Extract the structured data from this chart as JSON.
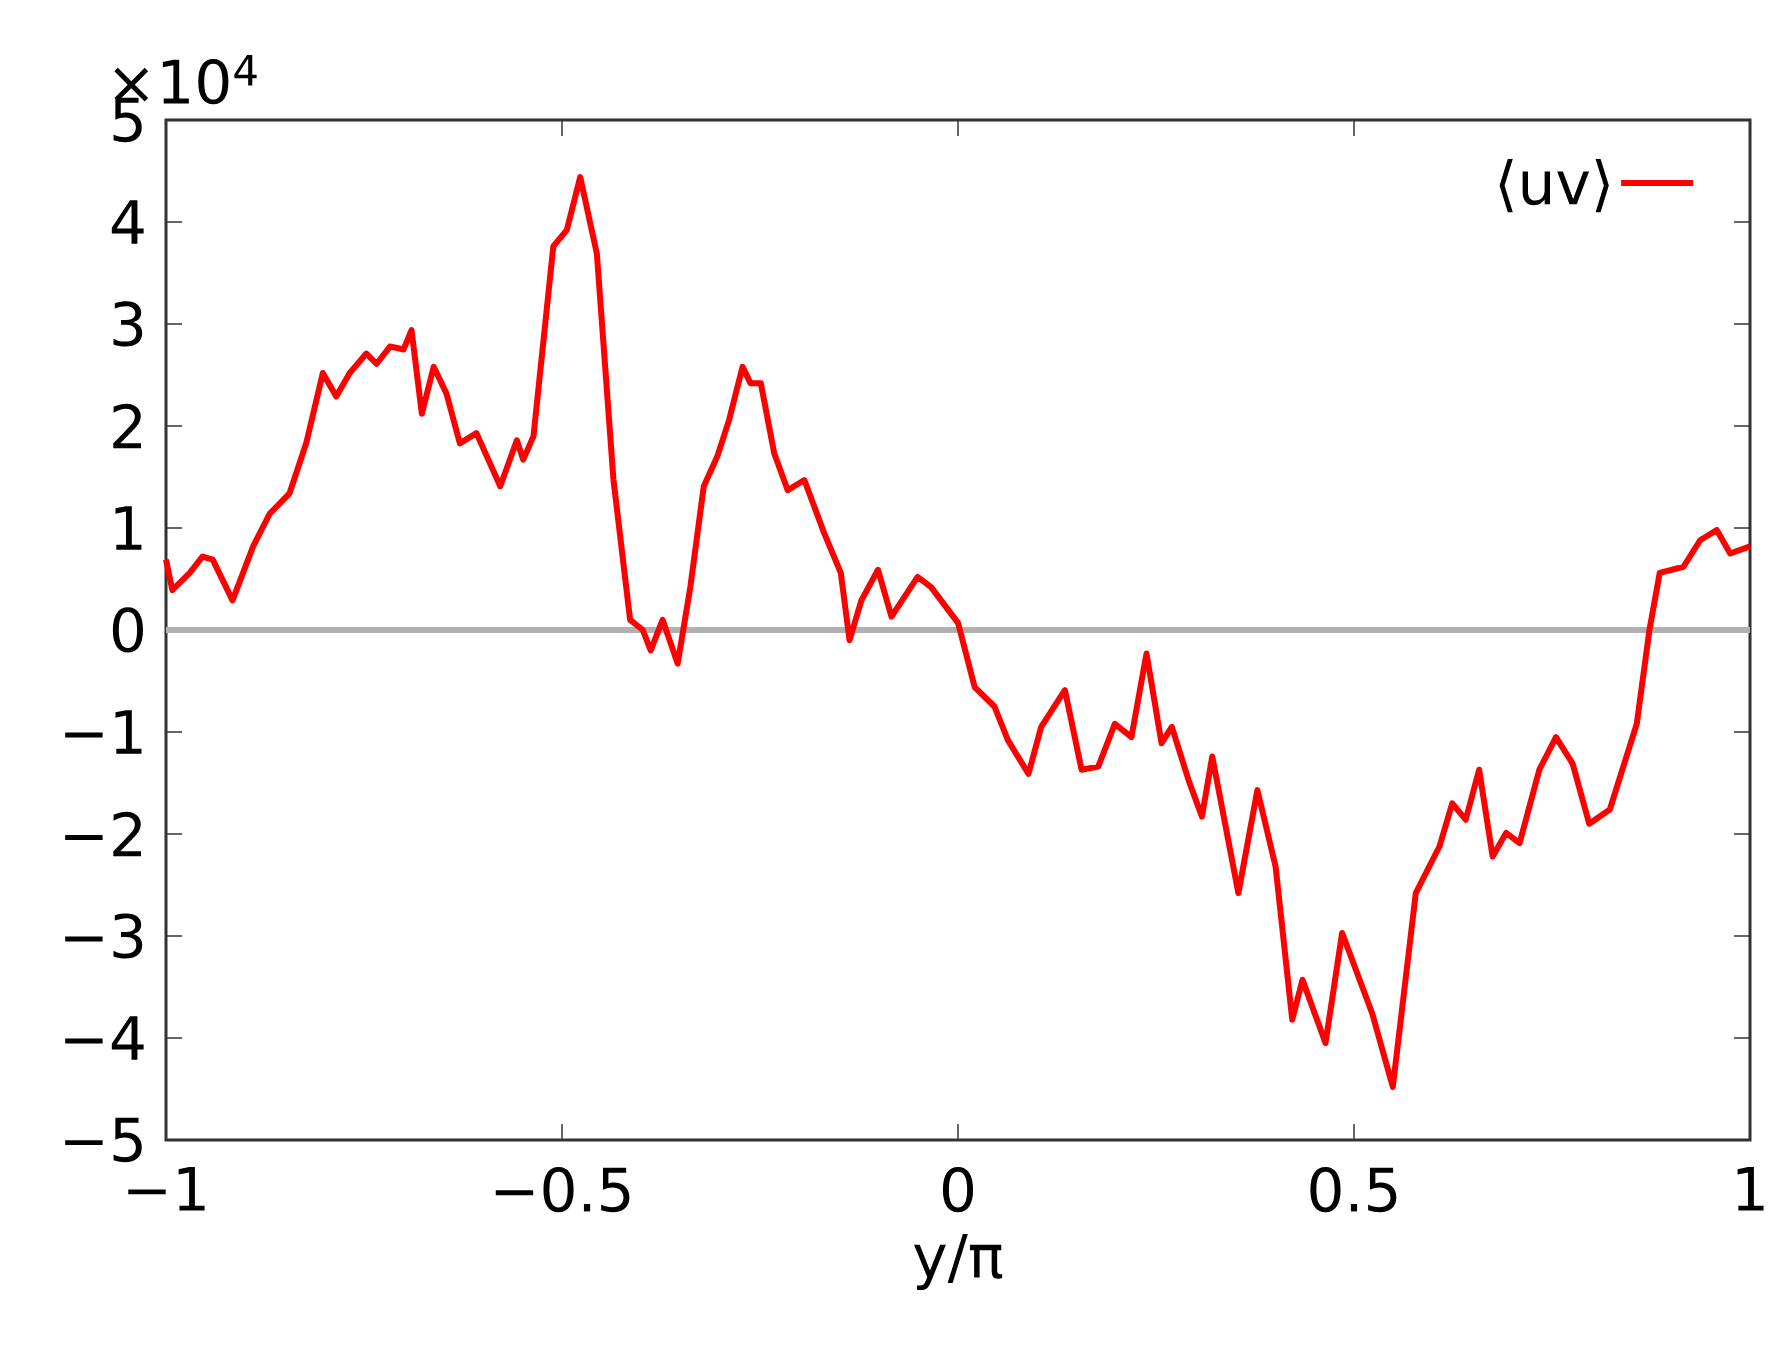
{
  "chart_data": {
    "type": "line",
    "xlabel": "y/π",
    "annotations": [
      "×10$^{4}$"
    ],
    "xlim": [
      -1,
      1
    ],
    "ylim": [
      -5,
      5
    ],
    "xticks": [
      {
        "value": -1,
        "label": "−1"
      },
      {
        "value": -0.5,
        "label": "−0.5"
      },
      0,
      0.5,
      1
    ],
    "yticks": [
      {
        "value": -5,
        "label": "−5"
      },
      {
        "value": -4,
        "label": "−4"
      },
      {
        "value": -3,
        "label": "−3"
      },
      {
        "value": -2,
        "label": "−2"
      },
      {
        "value": -1,
        "label": "−1"
      },
      0,
      1,
      2,
      3,
      4,
      5
    ],
    "grid": false,
    "legend": "top right",
    "marker": "none",
    "line_style": "solid",
    "ref_lines": [
      {
        "axis": "y",
        "value": 0,
        "color": "#b0b0b0"
      }
    ],
    "series": [
      {
        "name": "⟨uv⟩",
        "color": "#ff0000",
        "x": [
          -1.0,
          -0.992,
          -0.97,
          -0.954,
          -0.941,
          -0.916,
          -0.89,
          -0.869,
          -0.844,
          -0.823,
          -0.802,
          -0.785,
          -0.768,
          -0.747,
          -0.734,
          -0.717,
          -0.7,
          -0.69,
          -0.677,
          -0.662,
          -0.646,
          -0.629,
          -0.608,
          -0.578,
          -0.557,
          -0.549,
          -0.536,
          -0.511,
          -0.494,
          -0.477,
          -0.456,
          -0.435,
          -0.414,
          -0.398,
          -0.388,
          -0.373,
          -0.354,
          -0.338,
          -0.321,
          -0.304,
          -0.289,
          -0.272,
          -0.262,
          -0.249,
          -0.232,
          -0.215,
          -0.194,
          -0.169,
          -0.148,
          -0.137,
          -0.122,
          -0.101,
          -0.084,
          -0.051,
          -0.034,
          0.0,
          0.021,
          0.046,
          0.063,
          0.089,
          0.105,
          0.135,
          0.156,
          0.177,
          0.198,
          0.219,
          0.238,
          0.257,
          0.27,
          0.291,
          0.308,
          0.321,
          0.354,
          0.378,
          0.401,
          0.422,
          0.435,
          0.464,
          0.485,
          0.523,
          0.549,
          0.578,
          0.608,
          0.624,
          0.641,
          0.658,
          0.675,
          0.692,
          0.709,
          0.734,
          0.755,
          0.776,
          0.797,
          0.823,
          0.857,
          0.873,
          0.886,
          0.916,
          0.937,
          0.958,
          0.975,
          1.0
        ],
        "values": [
          0.69,
          0.39,
          0.56,
          0.72,
          0.69,
          0.29,
          0.82,
          1.14,
          1.34,
          1.83,
          2.52,
          2.29,
          2.52,
          2.71,
          2.61,
          2.78,
          2.75,
          2.94,
          2.12,
          2.58,
          2.32,
          1.83,
          1.93,
          1.41,
          1.86,
          1.67,
          1.9,
          3.76,
          3.92,
          4.44,
          3.69,
          1.47,
          0.1,
          0,
          -0.2,
          0.1,
          -0.33,
          0.42,
          1.41,
          1.7,
          2.06,
          2.58,
          2.42,
          2.42,
          1.73,
          1.37,
          1.47,
          0.95,
          0.56,
          -0.1,
          0.29,
          0.59,
          0.13,
          0.52,
          0.42,
          0.07,
          -0.56,
          -0.75,
          -1.08,
          -1.41,
          -0.95,
          -0.59,
          -1.37,
          -1.34,
          -0.92,
          -1.05,
          -0.23,
          -1.11,
          -0.95,
          -1.47,
          -1.83,
          -1.24,
          -2.58,
          -1.57,
          -2.32,
          -3.82,
          -3.43,
          -4.05,
          -2.97,
          -3.76,
          -4.48,
          -2.58,
          -2.12,
          -1.7,
          -1.86,
          -1.37,
          -2.22,
          -1.99,
          -2.09,
          -1.37,
          -1.05,
          -1.31,
          -1.9,
          -1.76,
          -0.92,
          0,
          0.56,
          0.62,
          0.88,
          0.98,
          0.75,
          0.82
        ]
      }
    ]
  }
}
